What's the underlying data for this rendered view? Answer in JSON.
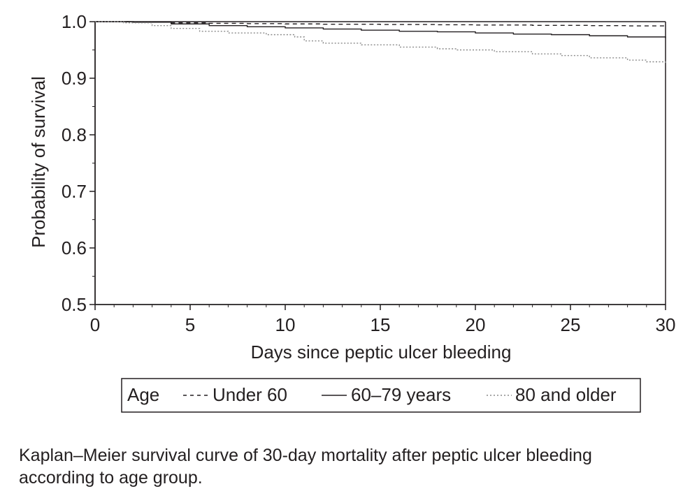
{
  "chart_data": {
    "type": "line",
    "title": "",
    "xlabel": "Days since peptic ulcer bleeding",
    "ylabel": "Probability of survival",
    "xlim": [
      0,
      30
    ],
    "ylim": [
      0.5,
      1.0
    ],
    "xticks": [
      0,
      5,
      10,
      15,
      20,
      25,
      30
    ],
    "yticks": [
      0.5,
      0.6,
      0.7,
      0.8,
      0.9,
      1.0
    ],
    "ytick_labels": [
      "0.5",
      "0.6",
      "0.7",
      "0.8",
      "0.9",
      "1.0"
    ],
    "grid": false,
    "legend": {
      "title": "Age",
      "placement": "bottom",
      "entries": [
        "Under 60",
        "60–79 years",
        "80 and older"
      ]
    },
    "series": [
      {
        "name": "Under 60",
        "style": "dashed",
        "x": [
          0,
          2,
          4,
          6,
          8,
          10,
          12,
          15,
          18,
          20,
          23,
          26,
          28,
          30
        ],
        "y": [
          1.0,
          0.999,
          0.998,
          0.997,
          0.9965,
          0.996,
          0.9955,
          0.995,
          0.9945,
          0.994,
          0.9935,
          0.993,
          0.9925,
          0.992
        ]
      },
      {
        "name": "60–79 years",
        "style": "solid",
        "x": [
          0,
          2,
          4,
          6,
          8,
          10,
          12,
          14,
          16,
          18,
          20,
          22,
          24,
          26,
          28,
          30
        ],
        "y": [
          1.0,
          0.999,
          0.996,
          0.993,
          0.991,
          0.989,
          0.987,
          0.985,
          0.983,
          0.982,
          0.98,
          0.978,
          0.977,
          0.975,
          0.973,
          0.971
        ]
      },
      {
        "name": "80 and older",
        "style": "dotted",
        "x": [
          0,
          1.5,
          3,
          4,
          5.5,
          7,
          9,
          10.5,
          11,
          12,
          14,
          16,
          18,
          19,
          21,
          23,
          24.5,
          26,
          28,
          29,
          30
        ],
        "y": [
          1.0,
          0.998,
          0.993,
          0.988,
          0.983,
          0.98,
          0.977,
          0.973,
          0.966,
          0.962,
          0.959,
          0.955,
          0.952,
          0.95,
          0.947,
          0.943,
          0.94,
          0.936,
          0.932,
          0.929,
          0.925
        ]
      }
    ],
    "colors": {
      "under60": "#231f20",
      "age60to79": "#231f20",
      "age80plus": "#8a8a8a"
    }
  },
  "caption": "Kaplan–Meier survival curve of 30-day mortality after peptic ulcer bleeding according to age group."
}
